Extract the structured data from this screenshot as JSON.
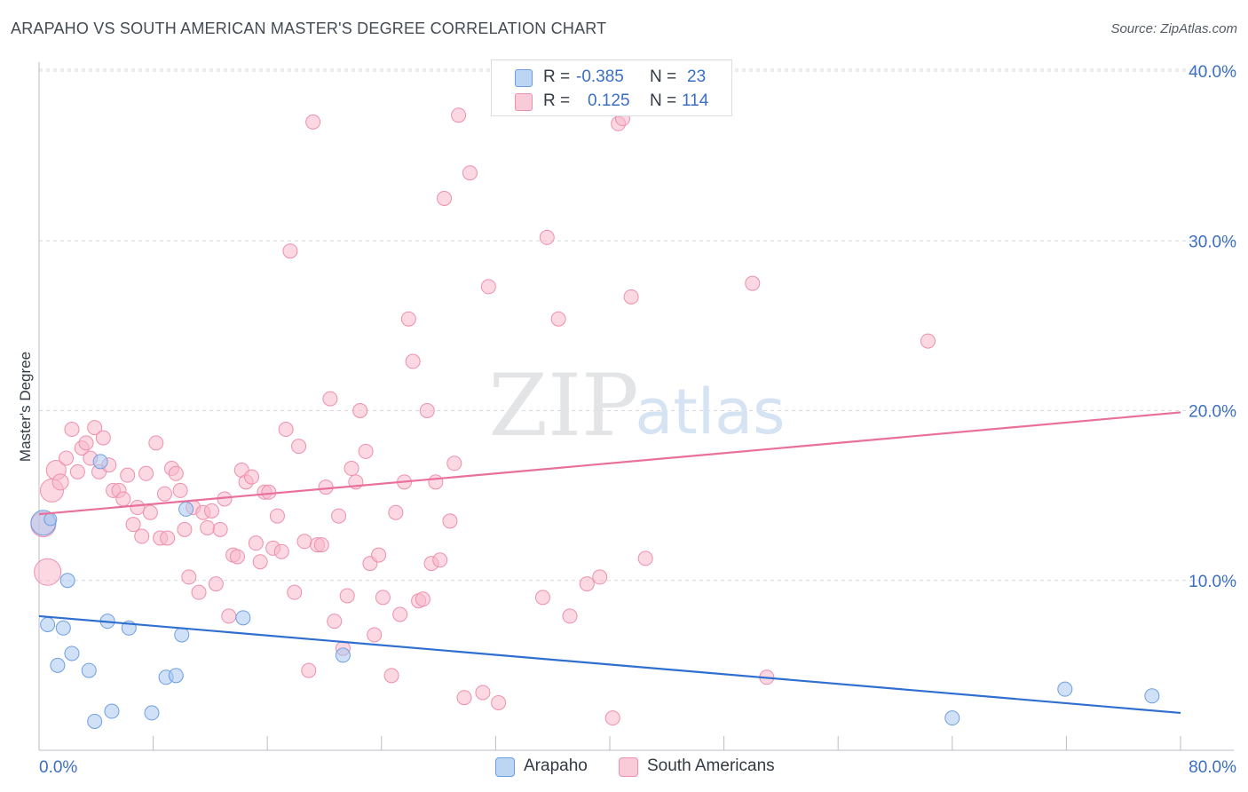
{
  "header": {
    "title": "ARAPAHO VS SOUTH AMERICAN MASTER'S DEGREE CORRELATION CHART",
    "source": "Source: ZipAtlas.com"
  },
  "watermark": {
    "zip": "ZIP",
    "atlas": "atlas"
  },
  "stats": {
    "rows": [
      {
        "r_label": "R = ",
        "r_value": "-0.385",
        "n_label": "N = ",
        "n_value": "23",
        "color": "#a9c8f0"
      },
      {
        "r_label": "R = ",
        "r_value": "0.125",
        "n_label": "N = ",
        "n_value": "114",
        "color": "#f7b8cb"
      }
    ]
  },
  "legend": {
    "items": [
      {
        "label": "Arapaho",
        "color": "#a9c8f0"
      },
      {
        "label": "South Americans",
        "color": "#f7b8cb"
      }
    ]
  },
  "colors": {
    "blue_fill": "#a9c8f0",
    "blue_stroke": "#6d9fe0",
    "blue_line": "#2f6fd0",
    "pink_fill": "#f7b8cb",
    "pink_stroke": "#ee8fae",
    "pink_line": "#e8709a",
    "grid": "#d5d8dd",
    "tick_text": "#3b6fc4"
  },
  "chart_data": {
    "type": "scatter",
    "title": "ARAPAHO VS SOUTH AMERICAN MASTER'S DEGREE CORRELATION CHART",
    "xlabel": "",
    "ylabel": "Master's Degree",
    "xlim": [
      0,
      80
    ],
    "ylim": [
      0,
      40
    ],
    "x_tick_labels": [
      "0.0%",
      "80.0%"
    ],
    "y_ticks": [
      10,
      20,
      30,
      40
    ],
    "y_tick_labels": [
      "10.0%",
      "20.0%",
      "30.0%",
      "40.0%"
    ],
    "grid": true,
    "legend_position": "bottom",
    "series": [
      {
        "name": "Arapaho",
        "points": [
          [
            0.3,
            13.4
          ],
          [
            0.8,
            13.6
          ],
          [
            0.6,
            7.4
          ],
          [
            1.3,
            5.0
          ],
          [
            1.7,
            7.2
          ],
          [
            2.0,
            10.0
          ],
          [
            2.3,
            5.7
          ],
          [
            3.5,
            4.7
          ],
          [
            3.9,
            1.7
          ],
          [
            4.3,
            17.0
          ],
          [
            4.8,
            7.6
          ],
          [
            5.1,
            2.3
          ],
          [
            6.3,
            7.2
          ],
          [
            7.9,
            2.2
          ],
          [
            8.9,
            4.3
          ],
          [
            9.6,
            4.4
          ],
          [
            10.0,
            6.8
          ],
          [
            10.3,
            14.2
          ],
          [
            14.3,
            7.8
          ],
          [
            21.3,
            5.6
          ],
          [
            64.0,
            1.9
          ],
          [
            71.9,
            3.6
          ],
          [
            78.0,
            3.2
          ]
        ],
        "sizes": [
          14,
          7,
          8,
          8,
          8,
          8,
          8,
          8,
          8,
          8,
          8,
          8,
          8,
          8,
          8,
          8,
          8,
          8,
          8,
          8,
          8,
          8,
          8
        ],
        "trend": {
          "x": [
            0,
            80
          ],
          "y": [
            7.9,
            2.2
          ]
        }
      },
      {
        "name": "South Americans",
        "points": [
          [
            0.3,
            13.3
          ],
          [
            0.6,
            10.5
          ],
          [
            0.9,
            15.3
          ],
          [
            1.2,
            16.5
          ],
          [
            1.5,
            15.8
          ],
          [
            1.9,
            17.2
          ],
          [
            2.3,
            18.9
          ],
          [
            2.7,
            16.4
          ],
          [
            3.0,
            17.8
          ],
          [
            3.3,
            18.1
          ],
          [
            3.6,
            17.2
          ],
          [
            3.9,
            19.0
          ],
          [
            4.2,
            16.4
          ],
          [
            4.5,
            18.4
          ],
          [
            4.9,
            16.8
          ],
          [
            5.2,
            15.3
          ],
          [
            5.6,
            15.3
          ],
          [
            5.9,
            14.8
          ],
          [
            6.2,
            16.2
          ],
          [
            6.6,
            13.3
          ],
          [
            6.9,
            14.3
          ],
          [
            7.2,
            12.6
          ],
          [
            7.5,
            16.3
          ],
          [
            7.8,
            14.0
          ],
          [
            8.2,
            18.1
          ],
          [
            8.5,
            12.5
          ],
          [
            8.8,
            15.1
          ],
          [
            9.0,
            12.5
          ],
          [
            9.3,
            16.6
          ],
          [
            9.6,
            16.3
          ],
          [
            9.9,
            15.3
          ],
          [
            10.2,
            13.0
          ],
          [
            10.5,
            10.2
          ],
          [
            10.8,
            14.3
          ],
          [
            11.2,
            9.3
          ],
          [
            11.5,
            14.0
          ],
          [
            11.8,
            13.1
          ],
          [
            12.1,
            14.1
          ],
          [
            12.4,
            9.8
          ],
          [
            12.7,
            13.0
          ],
          [
            13.0,
            14.8
          ],
          [
            13.3,
            7.9
          ],
          [
            13.6,
            11.5
          ],
          [
            13.9,
            11.4
          ],
          [
            14.2,
            16.5
          ],
          [
            14.5,
            15.8
          ],
          [
            14.9,
            16.1
          ],
          [
            15.2,
            12.2
          ],
          [
            15.5,
            11.1
          ],
          [
            15.8,
            15.2
          ],
          [
            16.1,
            15.2
          ],
          [
            16.4,
            11.9
          ],
          [
            16.7,
            13.8
          ],
          [
            17.0,
            11.7
          ],
          [
            17.3,
            18.9
          ],
          [
            17.6,
            29.4
          ],
          [
            17.9,
            9.3
          ],
          [
            18.2,
            17.9
          ],
          [
            18.6,
            12.3
          ],
          [
            18.9,
            4.7
          ],
          [
            19.2,
            37.0
          ],
          [
            19.5,
            12.1
          ],
          [
            19.8,
            12.1
          ],
          [
            20.1,
            15.5
          ],
          [
            20.4,
            20.7
          ],
          [
            20.7,
            7.6
          ],
          [
            21.0,
            13.8
          ],
          [
            21.3,
            6.0
          ],
          [
            21.6,
            9.1
          ],
          [
            21.9,
            16.6
          ],
          [
            22.2,
            15.8
          ],
          [
            22.5,
            20.0
          ],
          [
            22.9,
            17.6
          ],
          [
            23.2,
            11.0
          ],
          [
            23.5,
            6.8
          ],
          [
            23.8,
            11.5
          ],
          [
            24.1,
            9.0
          ],
          [
            24.7,
            4.4
          ],
          [
            25.0,
            14.0
          ],
          [
            25.3,
            8.0
          ],
          [
            25.6,
            15.8
          ],
          [
            25.9,
            25.4
          ],
          [
            26.2,
            22.9
          ],
          [
            26.6,
            8.8
          ],
          [
            26.9,
            8.9
          ],
          [
            27.2,
            20.0
          ],
          [
            27.5,
            11.0
          ],
          [
            27.8,
            15.8
          ],
          [
            28.1,
            11.2
          ],
          [
            28.4,
            32.5
          ],
          [
            28.8,
            13.5
          ],
          [
            29.1,
            16.9
          ],
          [
            29.4,
            37.4
          ],
          [
            29.8,
            3.1
          ],
          [
            30.2,
            34.0
          ],
          [
            31.1,
            3.4
          ],
          [
            31.5,
            27.3
          ],
          [
            32.2,
            2.8
          ],
          [
            35.3,
            9.0
          ],
          [
            35.6,
            30.2
          ],
          [
            36.4,
            25.4
          ],
          [
            37.2,
            7.9
          ],
          [
            38.4,
            9.8
          ],
          [
            39.3,
            10.2
          ],
          [
            40.2,
            1.9
          ],
          [
            40.6,
            36.9
          ],
          [
            40.9,
            37.2
          ],
          [
            41.5,
            26.7
          ],
          [
            42.5,
            11.3
          ],
          [
            50.0,
            27.5
          ],
          [
            51.0,
            4.3
          ],
          [
            62.3,
            24.1
          ]
        ],
        "sizes": [
          14,
          15,
          13,
          11,
          9,
          8,
          8,
          8,
          8,
          8,
          8,
          8,
          8,
          8,
          8,
          8,
          8,
          8,
          8,
          8,
          8,
          8,
          8,
          8,
          8,
          8,
          8,
          8,
          8,
          8,
          8,
          8,
          8,
          8,
          8,
          8,
          8,
          8,
          8,
          8,
          8,
          8,
          8,
          8,
          8,
          8,
          8,
          8,
          8,
          8,
          8,
          8,
          8,
          8,
          8,
          8,
          8,
          8,
          8,
          8,
          8,
          8,
          8,
          8,
          8,
          8,
          8,
          8,
          8,
          8,
          8,
          8,
          8,
          8,
          8,
          8,
          8,
          8,
          8,
          8,
          8,
          8,
          8,
          8,
          8,
          8,
          8,
          8,
          8,
          8,
          8,
          8,
          8,
          8,
          8,
          8,
          8,
          8,
          8,
          8,
          8,
          8,
          8,
          8,
          8,
          8,
          8,
          8,
          8,
          8,
          8,
          8,
          8,
          8
        ],
        "trend": {
          "x": [
            0,
            80
          ],
          "y": [
            13.9,
            19.9
          ]
        }
      }
    ]
  }
}
